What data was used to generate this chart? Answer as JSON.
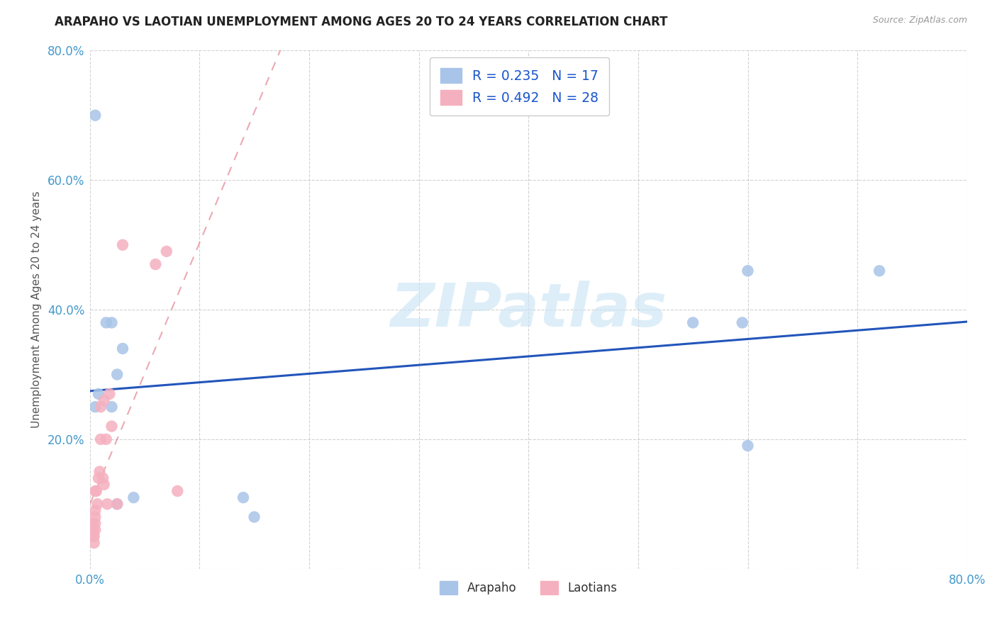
{
  "title": "ARAPAHO VS LAOTIAN UNEMPLOYMENT AMONG AGES 20 TO 24 YEARS CORRELATION CHART",
  "source": "Source: ZipAtlas.com",
  "ylabel": "Unemployment Among Ages 20 to 24 years",
  "arapaho_color": "#a8c4e8",
  "laotian_color": "#f5b0bf",
  "arapaho_R": "0.235",
  "arapaho_N": "17",
  "laotian_R": "0.492",
  "laotian_N": "28",
  "trendline_arapaho_color": "#2255bb",
  "trendline_laotian_color": "#e07080",
  "watermark_text": "ZIPatlas",
  "watermark_color": "#cce5f5",
  "legend_text_color": "#1a56cc",
  "grid_color": "#cccccc",
  "arapaho_x": [
    0.005,
    0.005,
    0.008,
    0.015,
    0.02,
    0.02,
    0.025,
    0.025,
    0.03,
    0.04,
    0.55,
    0.595,
    0.6,
    0.72,
    0.14,
    0.15,
    0.6
  ],
  "arapaho_y": [
    0.7,
    0.25,
    0.27,
    0.38,
    0.38,
    0.25,
    0.3,
    0.1,
    0.34,
    0.11,
    0.38,
    0.38,
    0.46,
    0.46,
    0.11,
    0.08,
    0.19
  ],
  "laotian_x": [
    0.003,
    0.003,
    0.003,
    0.004,
    0.004,
    0.005,
    0.005,
    0.005,
    0.005,
    0.005,
    0.006,
    0.007,
    0.008,
    0.009,
    0.01,
    0.01,
    0.012,
    0.013,
    0.013,
    0.015,
    0.016,
    0.018,
    0.02,
    0.025,
    0.03,
    0.06,
    0.07,
    0.08
  ],
  "laotian_y": [
    0.05,
    0.06,
    0.07,
    0.04,
    0.05,
    0.06,
    0.07,
    0.08,
    0.09,
    0.12,
    0.12,
    0.1,
    0.14,
    0.15,
    0.2,
    0.25,
    0.14,
    0.13,
    0.26,
    0.2,
    0.1,
    0.27,
    0.22,
    0.1,
    0.5,
    0.47,
    0.49,
    0.12
  ],
  "xlim": [
    0.0,
    0.8
  ],
  "ylim": [
    0.0,
    0.8
  ],
  "xtick_positions": [
    0.0,
    0.1,
    0.2,
    0.3,
    0.4,
    0.5,
    0.6,
    0.7,
    0.8
  ],
  "xtick_labels": [
    "0.0%",
    "",
    "",
    "",
    "",
    "",
    "",
    "",
    "80.0%"
  ],
  "ytick_positions": [
    0.0,
    0.2,
    0.4,
    0.6,
    0.8
  ],
  "ytick_labels": [
    "",
    "20.0%",
    "40.0%",
    "60.0%",
    "80.0%"
  ],
  "tick_color": "#4499cc",
  "title_fontsize": 12,
  "source_fontsize": 9
}
